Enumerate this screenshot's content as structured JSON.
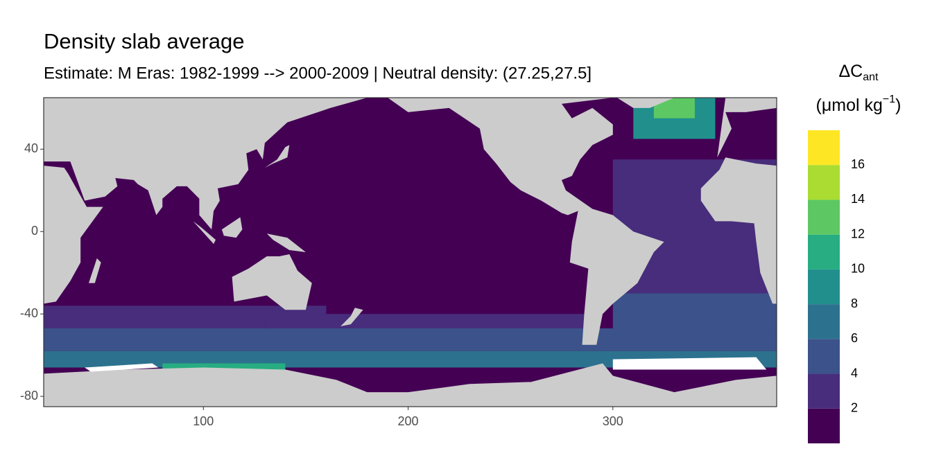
{
  "chart_data": {
    "type": "raster-map",
    "title": "Density slab average",
    "subtitle": "Estimate: M Eras: 1982-1999 --> 2000-2009 | Neutral density: (27.25,27.5]",
    "xlim": [
      22,
      380
    ],
    "ylim": [
      -85,
      65
    ],
    "xticks": [
      100,
      200,
      300
    ],
    "yticks": [
      40,
      0,
      -40,
      -80
    ],
    "background_value": 1,
    "regions": [
      {
        "lon": [
          22,
          160
        ],
        "lat": [
          -47,
          -36
        ],
        "value": 3
      },
      {
        "lon": [
          130,
          290
        ],
        "lat": [
          -47,
          -40
        ],
        "value": 3
      },
      {
        "lon": [
          300,
          380
        ],
        "lat": [
          -30,
          35
        ],
        "value": 3
      },
      {
        "lon": [
          22,
          380
        ],
        "lat": [
          -58,
          -47
        ],
        "value": 5
      },
      {
        "lon": [
          300,
          380
        ],
        "lat": [
          -50,
          -30
        ],
        "value": 5
      },
      {
        "lon": [
          22,
          380
        ],
        "lat": [
          -66,
          -58
        ],
        "value": 7
      },
      {
        "lon": [
          80,
          140
        ],
        "lat": [
          -68,
          -64
        ],
        "value": 11
      },
      {
        "lon": [
          310,
          350
        ],
        "lat": [
          45,
          65
        ],
        "value": 9
      },
      {
        "lon": [
          320,
          340
        ],
        "lat": [
          55,
          65
        ],
        "value": 13
      }
    ],
    "legend_title": {
      "symbol": "ΔC",
      "subscript": "ant",
      "unit": "(μmol kg",
      "unit_superscript": "−1",
      "unit_close": ")"
    },
    "bins": [
      0,
      2,
      4,
      6,
      8,
      10,
      12,
      14,
      16,
      18
    ],
    "legend_ticks": [
      2,
      4,
      6,
      8,
      10,
      12,
      14,
      16
    ],
    "colors": [
      "#440154",
      "#472d7b",
      "#3b528b",
      "#2c728e",
      "#21908c",
      "#27ad81",
      "#5dc863",
      "#aadc32",
      "#fde725"
    ]
  }
}
